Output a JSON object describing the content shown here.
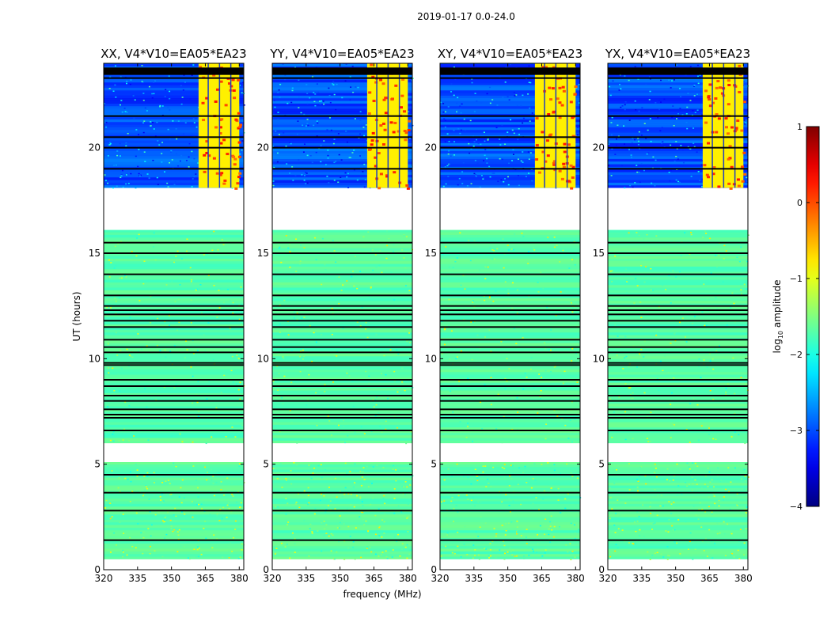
{
  "figure_title": "2019-01-17 0.0-24.0",
  "chart_data": {
    "type": "heatmap",
    "suptitle": "2019-01-17 0.0-24.0",
    "xlabel": "frequency (MHz)",
    "ylabel": "UT (hours)",
    "xlim": [
      320,
      382
    ],
    "ylim": [
      0,
      24
    ],
    "xticks": [
      320,
      335,
      350,
      365,
      380
    ],
    "yticks": [
      0,
      5,
      10,
      15,
      20
    ],
    "colorbar": {
      "label_main": "log",
      "label_sub": "10",
      "label_tail": " amplitude",
      "range": [
        -4,
        1
      ],
      "ticks": [
        -4,
        -3,
        -2,
        -1,
        0,
        1
      ],
      "tick_labels": [
        "−4",
        "−3",
        "−2",
        "−1",
        "0",
        "1"
      ],
      "colormap": "jet"
    },
    "panels": [
      {
        "title": "XX, V4*V10=EA05*EA23"
      },
      {
        "title": "YY, V4*V10=EA05*EA23"
      },
      {
        "title": "XY, V4*V10=EA05*EA23"
      },
      {
        "title": "YX, V4*V10=EA05*EA23"
      }
    ],
    "data_ranges_hours": [
      [
        0.5,
        5.1
      ],
      [
        6.0,
        16.1
      ],
      [
        18.1,
        24.0
      ]
    ],
    "gaps_hours": [
      [
        0,
        0.5
      ],
      [
        5.1,
        6.0
      ],
      [
        16.1,
        18.1
      ]
    ],
    "night_level_log10": -1.7,
    "day_background_log10": -3.0,
    "rfi_band_mhz": [
      362,
      380
    ],
    "rfi_level_log10": -0.8,
    "flagged_rows_hours": [
      1.4,
      2.8,
      3.65,
      4.5,
      6.6,
      7.2,
      7.35,
      7.6,
      8.0,
      8.25,
      8.7,
      9.0,
      9.7,
      9.8,
      10.3,
      10.55,
      10.9,
      11.5,
      11.8,
      12.1,
      12.3,
      12.5,
      13.0,
      14.0,
      15.0,
      15.5,
      19.0,
      20.0,
      20.5,
      21.5,
      23.3,
      23.5,
      23.6,
      23.75
    ]
  }
}
